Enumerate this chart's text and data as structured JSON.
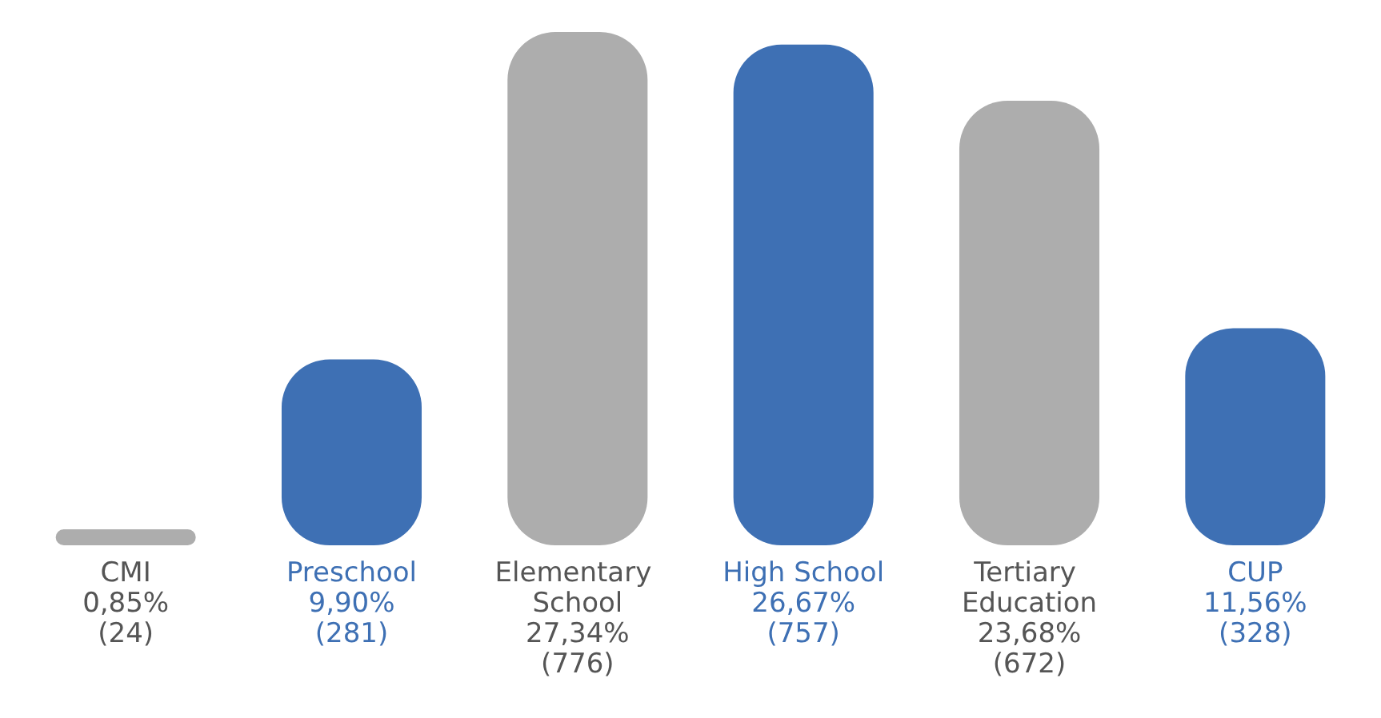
{
  "chart_data": {
    "type": "bar",
    "categories": [
      "CMI",
      "Preschool",
      "Elementary School",
      "High School",
      "Tertiary Education",
      "CUP"
    ],
    "values": [
      0.85,
      9.9,
      27.34,
      26.67,
      23.68,
      11.56
    ],
    "colors": [
      "#adadad",
      "#3e70b4",
      "#adadad",
      "#3e70b4",
      "#adadad",
      "#3e70b4"
    ],
    "value_labels": [
      "0,85%\n(24)",
      "9,90%\n(281)",
      "27,34%\n(776)",
      "26,67%\n(757)",
      "23,68%\n(672)",
      "11,56%\n(328)"
    ],
    "grid": false
  }
}
